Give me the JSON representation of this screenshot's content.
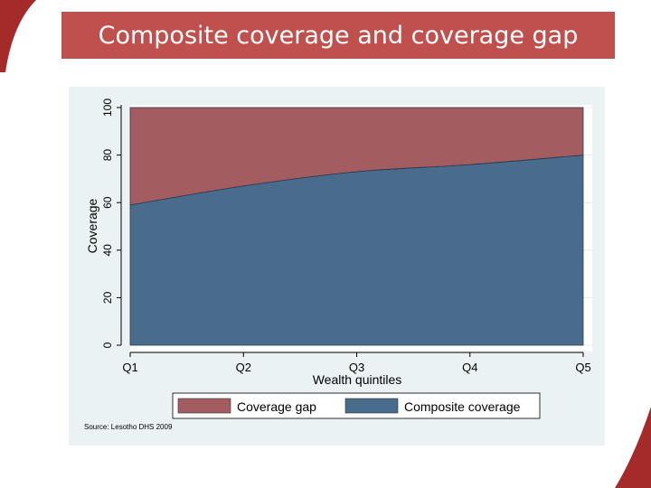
{
  "slide": {
    "title": "Composite coverage and coverage gap",
    "accent_color": "#c0504d"
  },
  "chart_data": {
    "type": "area",
    "stacked": true,
    "x": [
      "Q1",
      "Q2",
      "Q3",
      "Q4",
      "Q5"
    ],
    "series": [
      {
        "name": "Composite coverage",
        "values": [
          59,
          67,
          73,
          76,
          80
        ],
        "color": "#4a6c8c"
      },
      {
        "name": "Coverage gap",
        "values": [
          41,
          33,
          27,
          24,
          20
        ],
        "color": "#a35c60"
      }
    ],
    "xlabel": "Wealth quintiles",
    "ylabel": "Coverage",
    "ylim": [
      0,
      100
    ],
    "yticks": [
      0,
      20,
      40,
      60,
      80,
      100
    ],
    "grid": true,
    "legend": {
      "position": "bottom",
      "entries": [
        "Coverage gap",
        "Composite coverage"
      ]
    },
    "source": "Source: Lesotho DHS 2009"
  }
}
